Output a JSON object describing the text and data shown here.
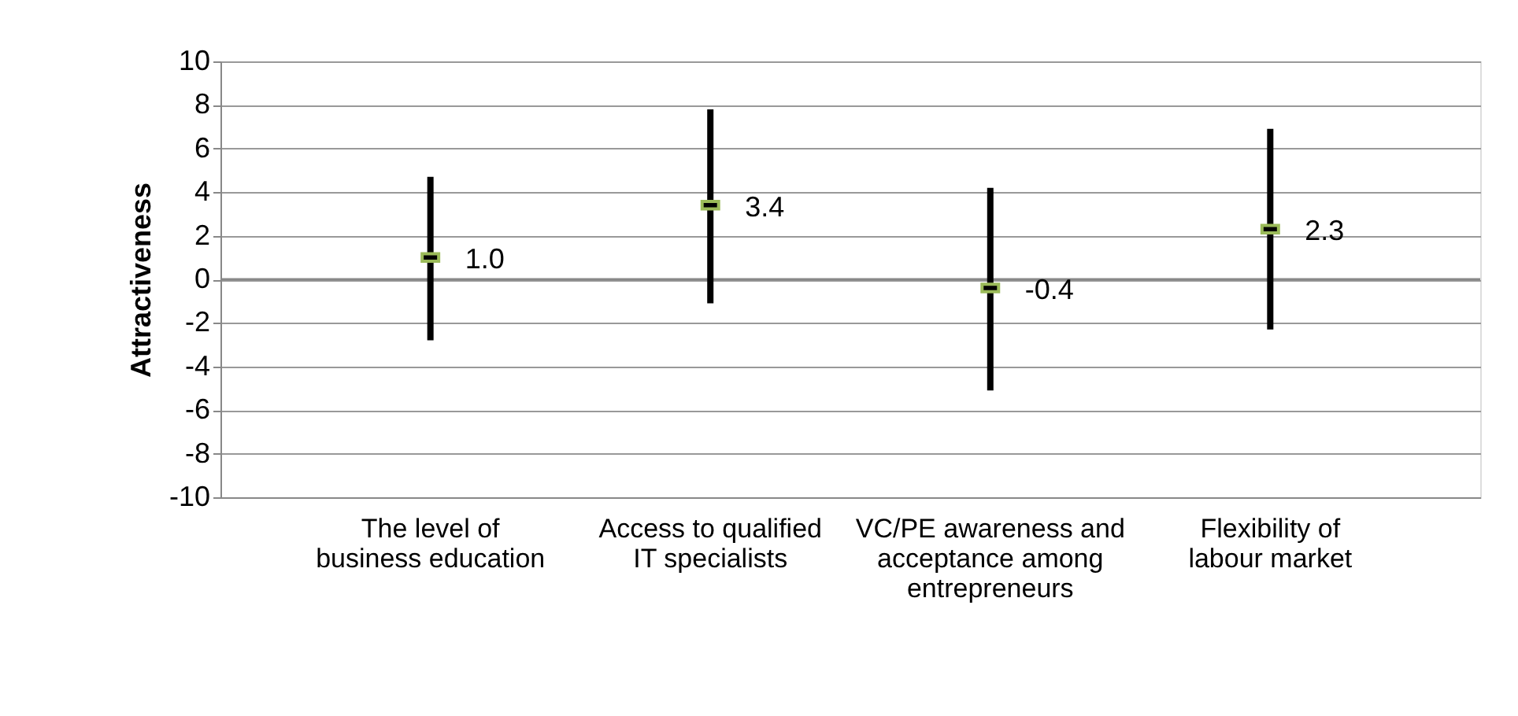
{
  "chart_data": {
    "type": "scatter",
    "ylabel": "Attractiveness",
    "categories": [
      "The level of business education",
      "Access to qualified IT specialists",
      "VC/PE awareness and acceptance among entrepreneurs",
      "Flexibility of labour market"
    ],
    "series": [
      {
        "color": "#000000",
        "values": [
          1.0,
          3.4,
          -0.4,
          2.3
        ],
        "value_labels": [
          "1.0",
          "3.4",
          "-0.4",
          "2.3"
        ],
        "errors": [
          [
            -2.8,
            4.7
          ],
          [
            -1.1,
            7.8
          ],
          [
            -5.1,
            4.2
          ],
          [
            -2.3,
            6.9
          ]
        ]
      }
    ],
    "ylim": [
      -10,
      10
    ],
    "yticks": [
      -10,
      -8,
      -6,
      -4,
      -2,
      0,
      2,
      4,
      6,
      8,
      10
    ],
    "grid": "y"
  }
}
